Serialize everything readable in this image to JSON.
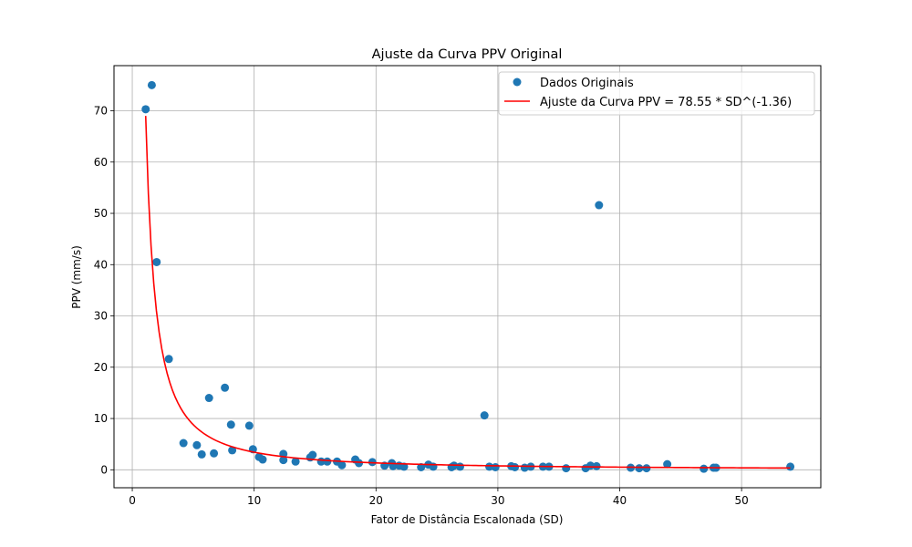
{
  "chart_data": {
    "type": "scatter",
    "title": "Ajuste da Curva PPV Original",
    "xlabel": "Fator de Distância Escalonada (SD)",
    "ylabel": "PPV (mm/s)",
    "xlim": [
      -1.5,
      56.5
    ],
    "ylim": [
      -3.5,
      78.8
    ],
    "xticks": [
      0,
      10,
      20,
      30,
      40,
      50
    ],
    "yticks": [
      0,
      10,
      20,
      30,
      40,
      50,
      60,
      70
    ],
    "grid": true,
    "legend_position": "top-right",
    "series": [
      {
        "name": "Dados Originais",
        "kind": "scatter",
        "color": "#1f77b4",
        "points": [
          [
            1.1,
            70.3
          ],
          [
            1.6,
            75.0
          ],
          [
            2.0,
            40.5
          ],
          [
            3.0,
            21.6
          ],
          [
            4.2,
            5.2
          ],
          [
            5.3,
            4.8
          ],
          [
            5.7,
            3.0
          ],
          [
            6.3,
            14.0
          ],
          [
            6.7,
            3.2
          ],
          [
            7.6,
            16.0
          ],
          [
            8.1,
            8.8
          ],
          [
            8.2,
            3.8
          ],
          [
            9.6,
            8.6
          ],
          [
            9.9,
            4.0
          ],
          [
            10.4,
            2.5
          ],
          [
            10.7,
            2.0
          ],
          [
            12.4,
            3.1
          ],
          [
            12.4,
            1.9
          ],
          [
            13.4,
            1.6
          ],
          [
            14.6,
            2.4
          ],
          [
            14.8,
            2.9
          ],
          [
            15.5,
            1.6
          ],
          [
            16.0,
            1.6
          ],
          [
            16.8,
            1.6
          ],
          [
            17.2,
            0.9
          ],
          [
            18.3,
            2.0
          ],
          [
            18.6,
            1.3
          ],
          [
            19.7,
            1.5
          ],
          [
            20.7,
            0.8
          ],
          [
            21.3,
            1.3
          ],
          [
            21.4,
            0.7
          ],
          [
            21.9,
            0.8
          ],
          [
            22.3,
            0.6
          ],
          [
            23.7,
            0.5
          ],
          [
            24.3,
            1.0
          ],
          [
            24.7,
            0.6
          ],
          [
            26.2,
            0.5
          ],
          [
            26.4,
            0.8
          ],
          [
            26.9,
            0.6
          ],
          [
            28.9,
            10.6
          ],
          [
            29.3,
            0.6
          ],
          [
            29.8,
            0.5
          ],
          [
            31.1,
            0.7
          ],
          [
            31.4,
            0.5
          ],
          [
            32.2,
            0.4
          ],
          [
            32.7,
            0.6
          ],
          [
            33.7,
            0.6
          ],
          [
            34.2,
            0.6
          ],
          [
            35.6,
            0.3
          ],
          [
            37.2,
            0.3
          ],
          [
            37.6,
            0.8
          ],
          [
            38.1,
            0.7
          ],
          [
            38.3,
            51.6
          ],
          [
            40.9,
            0.4
          ],
          [
            41.6,
            0.3
          ],
          [
            42.2,
            0.3
          ],
          [
            43.9,
            1.1
          ],
          [
            46.9,
            0.2
          ],
          [
            47.7,
            0.4
          ],
          [
            47.9,
            0.4
          ],
          [
            54.0,
            0.6
          ]
        ]
      },
      {
        "name": "Ajuste da Curva PPV = 78.55 * SD^(-1.36)",
        "kind": "line",
        "color": "#ff0000",
        "equation": {
          "a": 78.55,
          "b": -1.36
        },
        "x_range": [
          1.1,
          54.0
        ]
      }
    ]
  }
}
